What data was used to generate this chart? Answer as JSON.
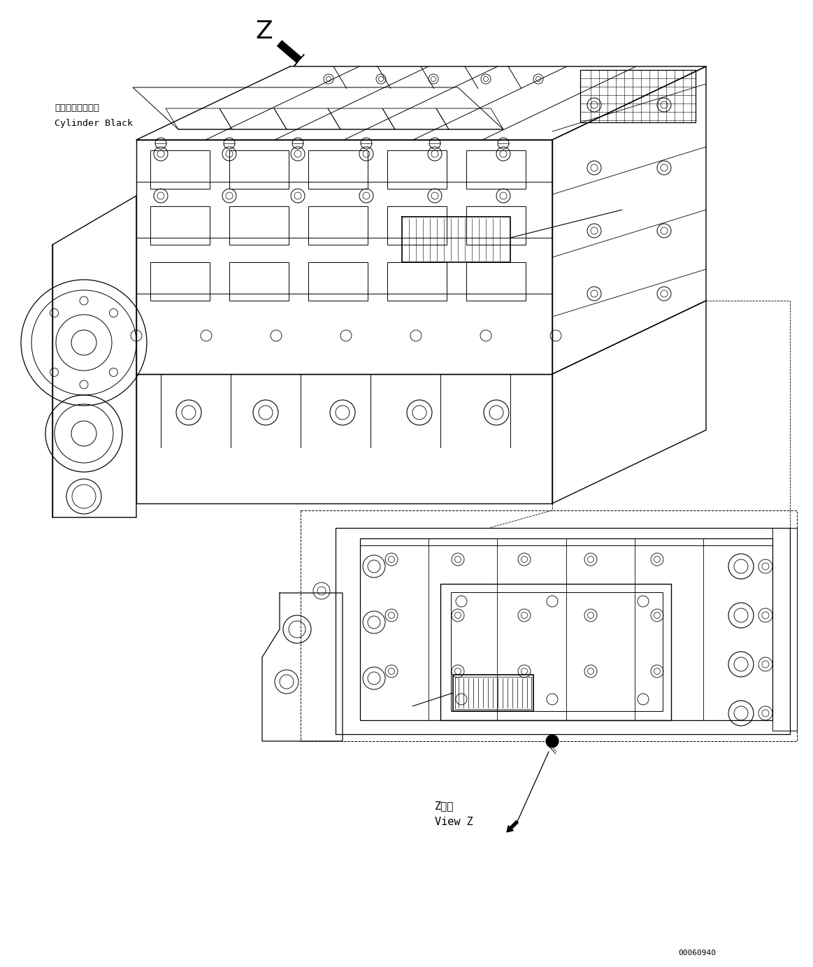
{
  "bg_color": "#ffffff",
  "label_cylinder_jp": "シリンダブロック",
  "label_cylinder_en": "Cylinder Black",
  "label_z": "Z",
  "label_z_view_jp": "Z　視",
  "label_z_view_en": "View Z",
  "part_number": "00060940",
  "line_color": "#000000",
  "fig_width": 11.63,
  "fig_height": 13.83,
  "dpi": 100
}
